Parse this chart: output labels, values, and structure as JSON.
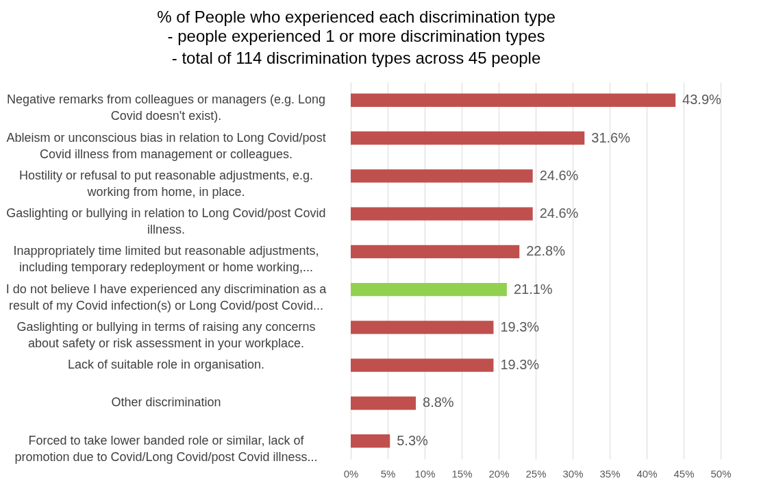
{
  "chart_data": {
    "type": "bar",
    "orientation": "horizontal",
    "title": "%  of People who experienced each discrimination type",
    "subtitle": " - people experienced 1 or more discrimination types\n - total of 114 discrimination types across 45 people",
    "categories": [
      "Negative remarks from colleagues or managers (e.g. Long\nCovid doesn't exist).",
      "Ableism or unconscious bias in relation to Long Covid/post\nCovid illness from management or colleagues.",
      "Hostility or refusal to put reasonable adjustments, e.g.\nworking from home, in place.",
      "Gaslighting or bullying in relation to Long Covid/post Covid\nillness.",
      "Inappropriately time limited but reasonable adjustments,\nincluding temporary redeployment or home working,...",
      "I do not believe I have experienced any discrimination as a\nresult of my Covid infection(s) or Long Covid/post Covid...",
      "Gaslighting or bullying in terms of raising any concerns\nabout safety or risk assessment in your workplace.",
      "Lack of suitable role in organisation.",
      "Other discrimination",
      "Forced to take lower banded role or similar, lack of\npromotion due to Covid/Long Covid/post Covid illness..."
    ],
    "values": [
      43.9,
      31.6,
      24.6,
      24.6,
      22.8,
      21.1,
      19.3,
      19.3,
      8.8,
      5.3
    ],
    "value_labels": [
      "43.9%",
      "31.6%",
      "24.6%",
      "24.6%",
      "22.8%",
      "21.1%",
      "19.3%",
      "19.3%",
      "8.8%",
      "5.3%"
    ],
    "colors": [
      "#c0504d",
      "#c0504d",
      "#c0504d",
      "#c0504d",
      "#c0504d",
      "#92d050",
      "#c0504d",
      "#c0504d",
      "#c0504d",
      "#c0504d"
    ],
    "xlim": [
      0,
      50
    ],
    "xticks": [
      {
        "value": 0,
        "label": "0%"
      },
      {
        "value": 5,
        "label": "5%"
      },
      {
        "value": 10,
        "label": "10%"
      },
      {
        "value": 15,
        "label": "15%"
      },
      {
        "value": 20,
        "label": "20%"
      },
      {
        "value": 25,
        "label": "25%"
      },
      {
        "value": 30,
        "label": "30%"
      },
      {
        "value": 35,
        "label": "35%"
      },
      {
        "value": 40,
        "label": "40%"
      },
      {
        "value": 45,
        "label": "45%"
      },
      {
        "value": 50,
        "label": "50%"
      }
    ],
    "grid": "x"
  }
}
